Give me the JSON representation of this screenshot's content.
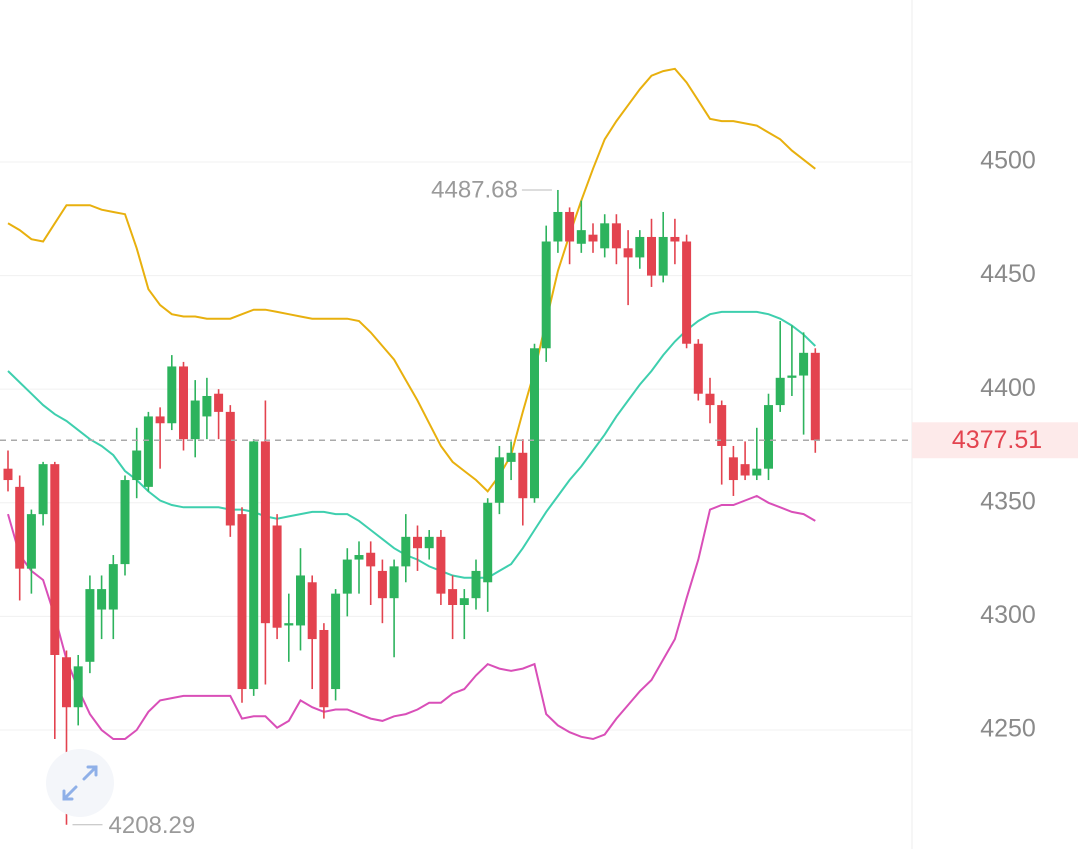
{
  "chart_data": {
    "type": "candlestick",
    "ylim": [
      4197.6,
      4571.3
    ],
    "yticks": [
      4250,
      4300,
      4350,
      4400,
      4450,
      4500
    ],
    "grid": true,
    "up_color": "#2db35d",
    "down_color": "#e3434f",
    "ohlc": {
      "open": [
        4365,
        4357,
        4321,
        4345,
        4367,
        4282,
        4260,
        4280,
        4303,
        4303,
        4323,
        4360,
        4357,
        4388,
        4385,
        4410,
        4378,
        4388,
        4398,
        4390,
        4345,
        4268,
        4377,
        4340,
        4296,
        4296,
        4315,
        4294,
        4268,
        4310,
        4325,
        4328,
        4320,
        4308,
        4322,
        4335,
        4330,
        4335,
        4312,
        4305,
        4308,
        4315,
        4350,
        4368,
        4372,
        4352,
        4418,
        4465,
        4478,
        4464,
        4468,
        4462,
        4473,
        4462,
        4458,
        4467,
        4450,
        4467,
        4465,
        4420,
        4398,
        4393,
        4370,
        4367,
        4362,
        4365,
        4393,
        4405,
        4406,
        4416
      ],
      "high": [
        4373,
        4362,
        4347,
        4368,
        4368,
        4285,
        4283,
        4318,
        4318,
        4327,
        4362,
        4383,
        4390,
        4392,
        4415,
        4412,
        4404,
        4405,
        4400,
        4393,
        4348,
        4378,
        4395,
        4345,
        4310,
        4330,
        4318,
        4297,
        4312,
        4330,
        4333,
        4333,
        4325,
        4325,
        4345,
        4340,
        4338,
        4338,
        4318,
        4312,
        4325,
        4352,
        4375,
        4377,
        4378,
        4420,
        4472,
        4487.68,
        4480,
        4483,
        4473,
        4477,
        4477,
        4470,
        4470,
        4475,
        4478,
        4475,
        4468,
        4422,
        4405,
        4395,
        4375,
        4377,
        4383,
        4398,
        4430,
        4428,
        4425,
        4418
      ],
      "low": [
        4355,
        4307,
        4310,
        4340,
        4246,
        4208.29,
        4252,
        4275,
        4290,
        4290,
        4318,
        4352,
        4355,
        4365,
        4382,
        4373,
        4370,
        4378,
        4378,
        4335,
        4262,
        4265,
        4270,
        4290,
        4280,
        4285,
        4268,
        4255,
        4263,
        4300,
        4310,
        4305,
        4297,
        4282,
        4315,
        4320,
        4325,
        4305,
        4290,
        4290,
        4303,
        4302,
        4345,
        4360,
        4340,
        4350,
        4412,
        4460,
        4455,
        4460,
        4460,
        4458,
        4455,
        4437,
        4453,
        4445,
        4447,
        4455,
        4418,
        4395,
        4385,
        4358,
        4353,
        4360,
        4360,
        4360,
        4390,
        4397,
        4380,
        4372
      ],
      "close": [
        4360,
        4321,
        4345,
        4367,
        4283,
        4260,
        4278,
        4312,
        4312,
        4323,
        4360,
        4373,
        4388,
        4385,
        4410,
        4378,
        4395,
        4397,
        4390,
        4340,
        4268,
        4377,
        4297,
        4295,
        4297,
        4318,
        4290,
        4260,
        4310,
        4325,
        4327,
        4322,
        4308,
        4322,
        4335,
        4330,
        4335,
        4310,
        4305,
        4308,
        4320,
        4350,
        4370,
        4372,
        4352,
        4418,
        4465,
        4478,
        4465,
        4470,
        4465,
        4473,
        4462,
        4458,
        4467,
        4450,
        4467,
        4465,
        4420,
        4398,
        4393,
        4375,
        4360,
        4362,
        4365,
        4393,
        4405,
        4406,
        4416,
        4377.51
      ]
    },
    "bands": [
      {
        "color": "#e8b00e",
        "values": [
          4473,
          4470,
          4466,
          4465,
          4473,
          4481,
          4481,
          4481,
          4479,
          4478,
          4477,
          4462,
          4444,
          4437,
          4433,
          4432,
          4432,
          4431,
          4431,
          4431,
          4433,
          4435,
          4435,
          4434,
          4433,
          4432,
          4431,
          4431,
          4431,
          4431,
          4430,
          4425,
          4419,
          4413,
          4404,
          4395,
          4385,
          4375,
          4368,
          4364,
          4360,
          4355,
          4362,
          4371,
          4390,
          4408,
          4430,
          4452,
          4468,
          4483,
          4497,
          4510,
          4518,
          4525,
          4532,
          4538,
          4540,
          4541,
          4535,
          4527,
          4519,
          4518,
          4518,
          4517,
          4516,
          4513,
          4510,
          4505,
          4501,
          4497
        ]
      },
      {
        "color": "#3ecfae",
        "values": [
          4408,
          4403,
          4398,
          4393,
          4389,
          4386,
          4382,
          4378,
          4375,
          4371,
          4364,
          4360,
          4355,
          4351,
          4349,
          4348,
          4348,
          4348,
          4348,
          4347,
          4347,
          4346,
          4344,
          4343,
          4344,
          4345,
          4346,
          4346,
          4345,
          4345,
          4342,
          4338,
          4334,
          4330,
          4327,
          4325,
          4322,
          4320,
          4318,
          4317,
          4317,
          4317,
          4320,
          4323,
          4330,
          4338,
          4346,
          4353,
          4360,
          4366,
          4373,
          4380,
          4388,
          4395,
          4402,
          4408,
          4415,
          4421,
          4426,
          4430,
          4433,
          4434,
          4434,
          4434,
          4434,
          4433,
          4431,
          4428,
          4424,
          4419
        ]
      },
      {
        "color": "#d94fb8",
        "values": [
          4345,
          4327,
          4320,
          4316,
          4300,
          4281,
          4268,
          4257,
          4250,
          4246,
          4246,
          4250,
          4258,
          4263,
          4264,
          4265,
          4265,
          4265,
          4265,
          4265,
          4255,
          4256,
          4256,
          4251,
          4254,
          4263,
          4260,
          4258,
          4259,
          4259,
          4257,
          4255,
          4254,
          4256,
          4257,
          4259,
          4262,
          4262,
          4266,
          4268,
          4274,
          4279,
          4277,
          4276,
          4277,
          4279,
          4257,
          4252,
          4249,
          4247,
          4246,
          4248,
          4255,
          4261,
          4267,
          4272,
          4281,
          4290,
          4308,
          4325,
          4347,
          4349,
          4349,
          4351,
          4353,
          4350,
          4348,
          4346,
          4345,
          4342
        ]
      }
    ]
  }
}
